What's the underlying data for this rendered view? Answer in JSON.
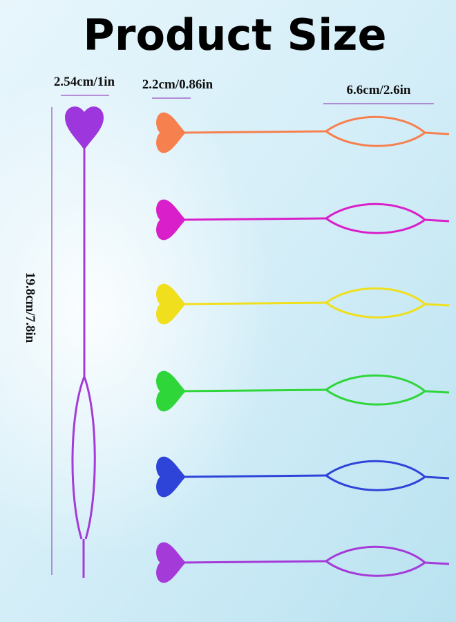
{
  "title": "Product Size",
  "labels": {
    "head_width": "2.54cm/1in",
    "small_head_width": "2.2cm/0.86in",
    "loop_length": "6.6cm/2.6in",
    "total_length": "19.8cm/7.8in"
  }
}
